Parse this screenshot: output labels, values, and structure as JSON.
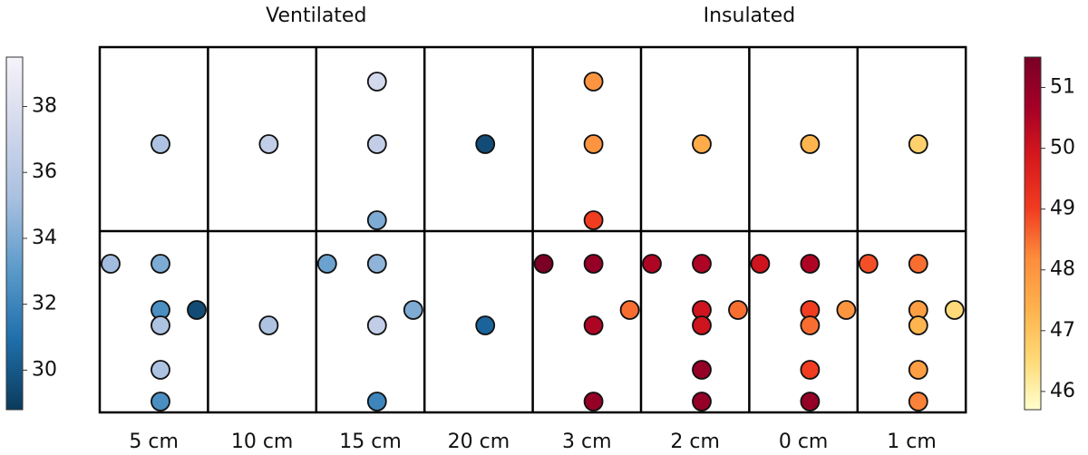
{
  "chart_data": {
    "type": "scatter",
    "groups": [
      {
        "title": "Ventilated",
        "categories": [
          "5 cm",
          "10 cm",
          "15 cm",
          "20 cm"
        ],
        "ylim": [
          28.8,
          39.5
        ],
        "yticks": [
          30,
          32,
          34,
          36,
          38
        ],
        "colors": [
          "#0b3b5c",
          "#1f6fab",
          "#5c9bcb",
          "#a9c0e0",
          "#d2d8ec",
          "#f6f3f9"
        ],
        "values": [
          [
            null,
            35.5,
            null,
            35,
            34,
            32.5,
            35.5,
            29.5,
            35.5,
            32.5
          ],
          [
            null,
            36.5,
            null,
            null,
            null,
            null,
            35.5,
            null,
            null,
            null
          ],
          [
            37.5,
            36.5,
            34,
            33.5,
            34.5,
            null,
            36.5,
            34,
            null,
            32
          ],
          [
            null,
            29.5,
            null,
            null,
            null,
            null,
            30.5,
            null,
            null,
            null
          ]
        ]
      },
      {
        "title": "Insulated",
        "categories": [
          "3 cm",
          "2 cm",
          "0 cm",
          "1 cm"
        ],
        "ylim": [
          45.7,
          51.5
        ],
        "yticks": [
          46,
          47,
          48,
          49,
          50,
          51
        ],
        "colors": [
          "#ffffcc",
          "#fed976",
          "#feb24c",
          "#fd8d3c",
          "#f03b20",
          "#d7191c",
          "#a50026",
          "#7a0025"
        ],
        "values": [
          [
            48,
            48,
            49,
            51.5,
            51,
            null,
            50.5,
            48.5,
            null,
            51
          ],
          [
            null,
            47.5,
            null,
            50.5,
            50.5,
            50,
            50,
            48.5,
            51,
            51
          ],
          [
            null,
            47.3,
            null,
            50,
            50.5,
            49,
            48.5,
            48,
            49,
            51
          ],
          [
            null,
            46.7,
            null,
            48.8,
            48.5,
            47.8,
            47.3,
            46.5,
            47.8,
            48.3
          ]
        ]
      }
    ]
  }
}
